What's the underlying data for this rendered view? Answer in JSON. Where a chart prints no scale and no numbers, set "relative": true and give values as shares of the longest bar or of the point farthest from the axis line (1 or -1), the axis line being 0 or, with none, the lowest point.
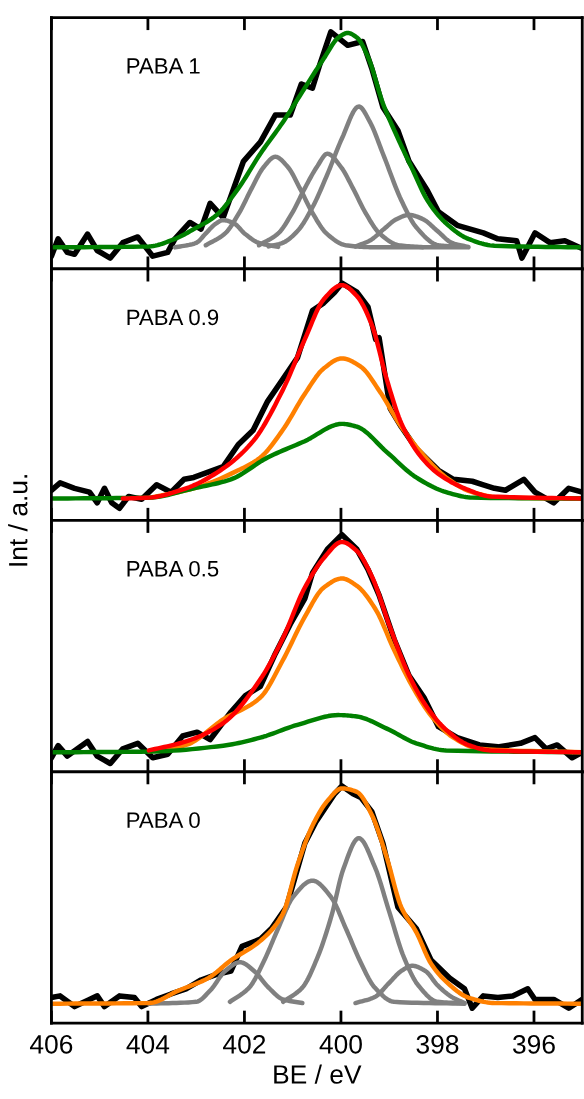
{
  "chart_data": [
    {
      "type": "line",
      "relative": true,
      "xlim": [
        406,
        395
      ],
      "xticks": [
        406,
        404,
        402,
        400,
        398,
        396
      ],
      "tick_labels": false,
      "annotations": [
        "PABA 1"
      ],
      "series": [
        {
          "color": "#000000",
          "x": [
            406.0,
            405.86,
            405.67,
            405.52,
            405.25,
            405.05,
            404.78,
            404.52,
            404.21,
            403.9,
            403.59,
            403.44,
            403.13,
            402.9,
            402.71,
            402.44,
            402.28,
            402.02,
            401.67,
            401.36,
            401.05,
            400.82,
            400.59,
            400.44,
            400.21,
            399.86,
            399.55,
            399.36,
            399.13,
            398.82,
            398.59,
            398.21,
            397.98,
            397.59,
            397.05,
            396.75,
            396.36,
            396.25,
            395.98,
            395.67,
            395.36,
            395.0
          ],
          "values": [
            0.054,
            0.127,
            0.07,
            0.062,
            0.147,
            0.078,
            0.046,
            0.111,
            0.135,
            0.054,
            0.07,
            0.127,
            0.196,
            0.168,
            0.277,
            0.217,
            0.307,
            0.454,
            0.535,
            0.649,
            0.649,
            0.78,
            0.763,
            0.861,
            1.0,
            0.943,
            0.959,
            0.845,
            0.682,
            0.584,
            0.454,
            0.331,
            0.241,
            0.184,
            0.152,
            0.127,
            0.119,
            0.046,
            0.152,
            0.111,
            0.119,
            0.086
          ]
        },
        {
          "color": "#808080",
          "x": [
            403.44,
            403.0,
            402.8,
            402.6,
            402.44,
            402.2,
            402.0,
            401.7,
            401.3
          ],
          "values": [
            0.091,
            0.11,
            0.15,
            0.19,
            0.206,
            0.19,
            0.15,
            0.11,
            0.093
          ]
        },
        {
          "color": "#808080",
          "x": [
            402.8,
            402.4,
            402.1,
            401.85,
            401.6,
            401.36,
            401.1,
            400.85,
            400.6,
            400.3,
            399.9,
            399.4,
            397.36
          ],
          "values": [
            0.1,
            0.15,
            0.24,
            0.34,
            0.43,
            0.473,
            0.43,
            0.34,
            0.24,
            0.15,
            0.1,
            0.092,
            0.091
          ]
        },
        {
          "color": "#808080",
          "x": [
            401.7,
            401.3,
            401.0,
            400.75,
            400.5,
            400.28,
            400.0,
            399.75,
            399.5,
            399.2,
            398.8,
            398.3
          ],
          "values": [
            0.1,
            0.15,
            0.24,
            0.34,
            0.43,
            0.486,
            0.43,
            0.34,
            0.24,
            0.15,
            0.1,
            0.092
          ]
        },
        {
          "color": "#808080",
          "x": [
            401.5,
            401.21,
            400.9,
            400.59,
            400.28,
            399.98,
            399.63,
            399.4,
            399.13,
            398.75,
            398.44,
            397.98,
            397.6
          ],
          "values": [
            0.095,
            0.11,
            0.16,
            0.26,
            0.4,
            0.55,
            0.685,
            0.62,
            0.486,
            0.29,
            0.176,
            0.1,
            0.094
          ]
        },
        {
          "color": "#808080",
          "x": [
            399.7,
            399.4,
            399.1,
            398.85,
            398.59,
            398.3,
            398.0,
            397.7,
            397.36
          ],
          "values": [
            0.095,
            0.12,
            0.17,
            0.21,
            0.228,
            0.21,
            0.16,
            0.11,
            0.093
          ]
        },
        {
          "color": "#008000",
          "x": [
            406.0,
            403.98,
            403.44,
            403.05,
            402.59,
            402.13,
            401.67,
            401.21,
            400.75,
            400.36,
            400.05,
            399.86,
            399.67,
            399.44,
            399.13,
            398.82,
            398.52,
            398.21,
            397.82,
            397.36,
            396.82,
            395.0
          ],
          "values": [
            0.091,
            0.095,
            0.127,
            0.168,
            0.225,
            0.339,
            0.486,
            0.617,
            0.763,
            0.886,
            0.976,
            0.995,
            0.976,
            0.894,
            0.698,
            0.551,
            0.421,
            0.29,
            0.192,
            0.127,
            0.098,
            0.091
          ]
        }
      ]
    },
    {
      "type": "line",
      "relative": true,
      "xlim": [
        406,
        395
      ],
      "xticks": [
        406,
        404,
        402,
        400,
        398,
        396
      ],
      "tick_labels": false,
      "annotations": [
        "PABA 0.9"
      ],
      "ylabel": "Int / a.u.",
      "series": [
        {
          "color": "#000000",
          "x": [
            406.0,
            405.82,
            405.52,
            405.21,
            405.05,
            404.9,
            404.75,
            404.59,
            404.4,
            404.13,
            403.82,
            403.52,
            403.25,
            403.05,
            402.44,
            402.13,
            401.82,
            401.52,
            401.21,
            400.9,
            400.59,
            400.36,
            400.13,
            399.98,
            399.67,
            399.44,
            399.28,
            399.21,
            398.98,
            398.75,
            398.44,
            397.98,
            397.67,
            397.28,
            397.05,
            396.82,
            396.59,
            396.21,
            395.98,
            395.59,
            395.28,
            395.0
          ],
          "values": [
            0.127,
            0.158,
            0.135,
            0.119,
            0.074,
            0.135,
            0.074,
            0.051,
            0.101,
            0.089,
            0.15,
            0.119,
            0.173,
            0.181,
            0.227,
            0.319,
            0.38,
            0.502,
            0.594,
            0.686,
            0.885,
            0.916,
            0.962,
            1.0,
            0.962,
            0.9,
            0.763,
            0.77,
            0.472,
            0.395,
            0.303,
            0.211,
            0.173,
            0.165,
            0.15,
            0.135,
            0.127,
            0.173,
            0.119,
            0.074,
            0.135,
            0.119
          ]
        },
        {
          "color": "#ff8000",
          "x": [
            403.98,
            403.05,
            402.13,
            401.67,
            401.21,
            400.75,
            400.36,
            399.98,
            399.59,
            399.21,
            398.75,
            398.28,
            397.82,
            397.28,
            396.67,
            395.0
          ],
          "values": [
            0.095,
            0.135,
            0.211,
            0.265,
            0.38,
            0.533,
            0.64,
            0.683,
            0.648,
            0.548,
            0.395,
            0.273,
            0.181,
            0.119,
            0.096,
            0.092
          ]
        },
        {
          "color": "#008000",
          "x": [
            406.0,
            403.98,
            403.05,
            402.28,
            401.52,
            400.75,
            399.98,
            399.67,
            399.05,
            398.44,
            397.82,
            397.28,
            395.0
          ],
          "values": [
            0.092,
            0.096,
            0.135,
            0.173,
            0.265,
            0.334,
            0.407,
            0.395,
            0.288,
            0.181,
            0.119,
            0.096,
            0.092
          ]
        },
        {
          "color": "#ff0000",
          "x": [
            404.52,
            403.98,
            403.21,
            402.44,
            401.82,
            401.21,
            400.75,
            400.36,
            399.98,
            399.67,
            399.36,
            399.05,
            398.75,
            398.36,
            397.98,
            397.44,
            396.9,
            395.0
          ],
          "values": [
            0.092,
            0.096,
            0.135,
            0.219,
            0.334,
            0.548,
            0.763,
            0.931,
            0.992,
            0.946,
            0.824,
            0.594,
            0.41,
            0.273,
            0.196,
            0.135,
            0.101,
            0.092
          ]
        }
      ]
    },
    {
      "type": "line",
      "relative": true,
      "xlim": [
        406,
        395
      ],
      "xticks": [
        406,
        404,
        402,
        400,
        398,
        396
      ],
      "tick_labels": false,
      "annotations": [
        "PABA 0.5"
      ],
      "series": [
        {
          "color": "#000000",
          "x": [
            406.0,
            405.86,
            405.67,
            405.25,
            405.05,
            404.78,
            404.52,
            404.21,
            403.9,
            403.59,
            403.28,
            402.98,
            402.71,
            402.28,
            401.98,
            401.67,
            401.36,
            401.05,
            400.75,
            400.59,
            400.28,
            399.98,
            399.67,
            399.44,
            399.21,
            398.9,
            398.59,
            398.28,
            397.98,
            397.59,
            397.13,
            396.75,
            396.28,
            395.98,
            395.75,
            395.52,
            395.21,
            395.0
          ],
          "values": [
            0.059,
            0.11,
            0.066,
            0.128,
            0.066,
            0.035,
            0.097,
            0.12,
            0.059,
            0.074,
            0.151,
            0.167,
            0.136,
            0.252,
            0.321,
            0.36,
            0.498,
            0.622,
            0.73,
            0.838,
            0.938,
            1.0,
            0.938,
            0.853,
            0.745,
            0.56,
            0.406,
            0.313,
            0.19,
            0.144,
            0.113,
            0.105,
            0.12,
            0.144,
            0.097,
            0.113,
            0.059,
            0.082
          ]
        },
        {
          "color": "#ff8000",
          "x": [
            403.98,
            403.21,
            402.44,
            401.67,
            401.21,
            400.75,
            400.36,
            399.98,
            399.67,
            399.28,
            398.9,
            398.52,
            398.13,
            397.67,
            397.13,
            395.0
          ],
          "values": [
            0.085,
            0.113,
            0.221,
            0.313,
            0.468,
            0.653,
            0.776,
            0.815,
            0.784,
            0.684,
            0.514,
            0.36,
            0.236,
            0.144,
            0.097,
            0.082
          ]
        },
        {
          "color": "#008000",
          "x": [
            406.0,
            403.98,
            402.44,
            401.67,
            400.9,
            400.05,
            399.67,
            399.05,
            398.44,
            397.82,
            395.0
          ],
          "values": [
            0.082,
            0.085,
            0.11,
            0.144,
            0.198,
            0.239,
            0.233,
            0.182,
            0.12,
            0.09,
            0.082
          ]
        },
        {
          "color": "#ff0000",
          "x": [
            403.98,
            403.21,
            402.44,
            401.67,
            401.21,
            400.75,
            400.36,
            399.98,
            399.67,
            399.36,
            398.98,
            398.59,
            398.21,
            397.82,
            397.36,
            396.9,
            395.0
          ],
          "values": [
            0.09,
            0.128,
            0.205,
            0.39,
            0.56,
            0.776,
            0.9,
            0.969,
            0.931,
            0.824,
            0.608,
            0.407,
            0.27,
            0.177,
            0.113,
            0.09,
            0.082
          ]
        }
      ]
    },
    {
      "type": "line",
      "relative": true,
      "xlim": [
        406,
        395
      ],
      "xticks": [
        406,
        404,
        402,
        400,
        398,
        396
      ],
      "tick_labels": "x",
      "annotations": [
        "PABA 0"
      ],
      "xlabel": "BE / eV",
      "series": [
        {
          "color": "#000000",
          "x": [
            406.0,
            405.82,
            405.52,
            405.21,
            405.05,
            404.9,
            404.59,
            404.28,
            404.13,
            403.82,
            403.52,
            403.21,
            402.9,
            402.59,
            402.28,
            402.05,
            401.67,
            401.44,
            401.13,
            400.75,
            400.52,
            400.13,
            399.98,
            399.75,
            399.59,
            399.36,
            399.13,
            398.82,
            398.44,
            398.13,
            397.75,
            397.44,
            397.28,
            397.05,
            396.75,
            396.44,
            396.13,
            395.98,
            395.59,
            395.28,
            395.0
          ],
          "values": [
            0.108,
            0.115,
            0.07,
            0.1,
            0.115,
            0.07,
            0.115,
            0.108,
            0.07,
            0.1,
            0.123,
            0.145,
            0.182,
            0.205,
            0.22,
            0.324,
            0.354,
            0.399,
            0.489,
            0.758,
            0.848,
            0.967,
            1.0,
            0.967,
            0.952,
            0.892,
            0.758,
            0.489,
            0.399,
            0.265,
            0.19,
            0.145,
            0.063,
            0.115,
            0.108,
            0.115,
            0.145,
            0.1,
            0.1,
            0.063,
            0.1
          ]
        },
        {
          "color": "#808080",
          "x": [
            403.98,
            403.0,
            402.7,
            402.4,
            402.09,
            401.8,
            401.5,
            401.2,
            400.8
          ],
          "values": [
            0.082,
            0.09,
            0.14,
            0.22,
            0.257,
            0.22,
            0.15,
            0.1,
            0.085
          ]
        },
        {
          "color": "#808080",
          "x": [
            402.3,
            401.9,
            401.6,
            401.3,
            401.0,
            400.59,
            400.2,
            399.9,
            399.6,
            399.3,
            398.9,
            397.44
          ],
          "values": [
            0.09,
            0.15,
            0.26,
            0.4,
            0.53,
            0.601,
            0.53,
            0.4,
            0.26,
            0.15,
            0.09,
            0.082
          ]
        },
        {
          "color": "#808080",
          "x": [
            401.2,
            400.8,
            400.5,
            400.2,
            399.95,
            399.63,
            399.3,
            399.0,
            398.7,
            398.4,
            398.0,
            397.44
          ],
          "values": [
            0.09,
            0.15,
            0.27,
            0.45,
            0.65,
            0.78,
            0.66,
            0.47,
            0.28,
            0.16,
            0.09,
            0.084
          ]
        },
        {
          "color": "#808080",
          "x": [
            399.7,
            399.3,
            399.0,
            398.75,
            398.52,
            398.25,
            398.0,
            397.7,
            397.44
          ],
          "values": [
            0.085,
            0.11,
            0.17,
            0.22,
            0.242,
            0.22,
            0.16,
            0.11,
            0.085
          ]
        },
        {
          "color": "#ff8000",
          "x": [
            406.0,
            403.98,
            403.36,
            402.75,
            402.28,
            401.67,
            401.21,
            400.9,
            400.59,
            400.28,
            399.98,
            399.67,
            399.36,
            399.05,
            398.75,
            398.44,
            398.13,
            397.82,
            397.36,
            396.82,
            395.0
          ],
          "values": [
            0.082,
            0.085,
            0.138,
            0.19,
            0.265,
            0.347,
            0.459,
            0.668,
            0.833,
            0.937,
            0.99,
            0.975,
            0.878,
            0.698,
            0.489,
            0.384,
            0.25,
            0.175,
            0.108,
            0.085,
            0.082
          ]
        }
      ]
    }
  ]
}
